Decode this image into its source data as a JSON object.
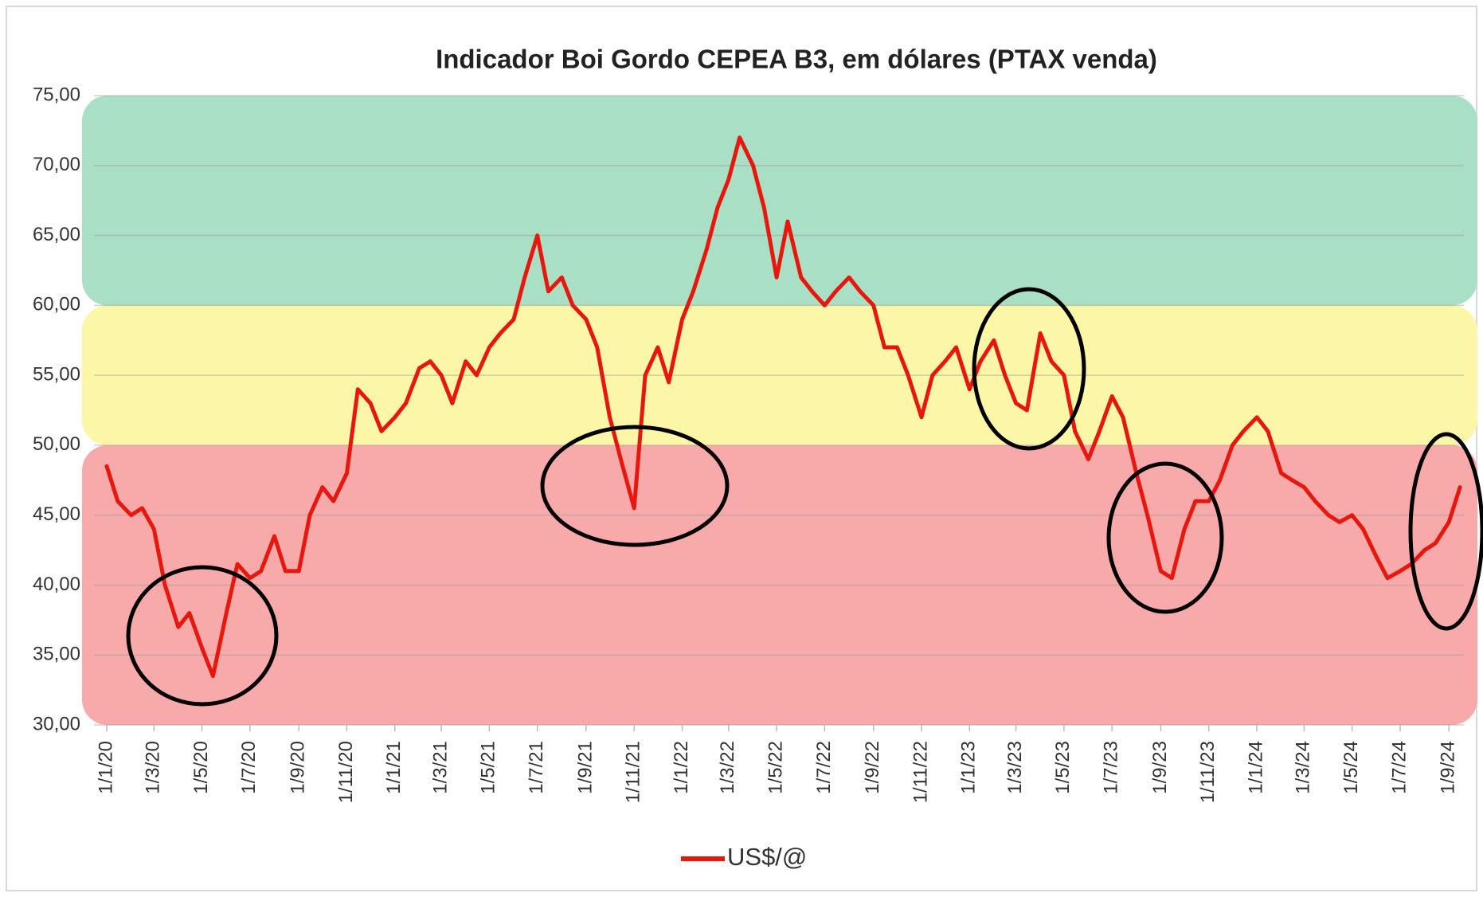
{
  "chart_data": {
    "type": "line",
    "title": "Indicador Boi Gordo CEPEA B3, em dólares (PTAX venda)",
    "x": [
      "2020-01-01",
      "2020-01-15",
      "2020-02-01",
      "2020-02-15",
      "2020-03-01",
      "2020-03-15",
      "2020-04-01",
      "2020-04-15",
      "2020-05-01",
      "2020-05-15",
      "2020-06-01",
      "2020-06-15",
      "2020-07-01",
      "2020-07-15",
      "2020-08-01",
      "2020-08-15",
      "2020-09-01",
      "2020-09-15",
      "2020-10-01",
      "2020-10-15",
      "2020-11-01",
      "2020-11-15",
      "2020-12-01",
      "2020-12-15",
      "2021-01-01",
      "2021-01-15",
      "2021-02-01",
      "2021-02-15",
      "2021-03-01",
      "2021-03-15",
      "2021-04-01",
      "2021-04-15",
      "2021-05-01",
      "2021-05-15",
      "2021-06-01",
      "2021-06-15",
      "2021-07-01",
      "2021-07-15",
      "2021-08-01",
      "2021-08-15",
      "2021-09-01",
      "2021-09-15",
      "2021-10-01",
      "2021-10-15",
      "2021-11-01",
      "2021-11-15",
      "2021-12-01",
      "2021-12-15",
      "2022-01-01",
      "2022-01-15",
      "2022-02-01",
      "2022-02-15",
      "2022-03-01",
      "2022-03-15",
      "2022-04-01",
      "2022-04-15",
      "2022-05-01",
      "2022-05-15",
      "2022-06-01",
      "2022-06-15",
      "2022-07-01",
      "2022-07-15",
      "2022-08-01",
      "2022-08-15",
      "2022-09-01",
      "2022-09-15",
      "2022-10-01",
      "2022-10-15",
      "2022-11-01",
      "2022-11-15",
      "2022-12-01",
      "2022-12-15",
      "2023-01-01",
      "2023-01-15",
      "2023-02-01",
      "2023-02-15",
      "2023-03-01",
      "2023-03-15",
      "2023-04-01",
      "2023-04-15",
      "2023-05-01",
      "2023-05-15",
      "2023-06-01",
      "2023-06-15",
      "2023-07-01",
      "2023-07-15",
      "2023-08-01",
      "2023-08-15",
      "2023-09-01",
      "2023-09-15",
      "2023-10-01",
      "2023-10-15",
      "2023-11-01",
      "2023-11-15",
      "2023-12-01",
      "2023-12-15",
      "2024-01-01",
      "2024-01-15",
      "2024-02-01",
      "2024-02-15",
      "2024-03-01",
      "2024-03-15",
      "2024-04-01",
      "2024-04-15",
      "2024-05-01",
      "2024-05-15",
      "2024-06-01",
      "2024-06-15",
      "2024-07-01",
      "2024-07-15",
      "2024-08-01",
      "2024-08-15",
      "2024-09-01",
      "2024-09-15"
    ],
    "series": [
      {
        "name": "US$/@",
        "color": "#e8170e",
        "values": [
          48.5,
          46,
          45,
          45.5,
          44,
          40,
          37,
          38,
          35.5,
          33.5,
          38,
          41.5,
          40.5,
          41,
          43.5,
          41,
          41,
          45,
          47,
          46,
          48,
          54,
          53,
          51,
          52,
          53,
          55.5,
          56,
          55,
          53,
          56,
          55,
          57,
          58,
          59,
          62,
          65,
          61,
          62,
          60,
          59,
          57,
          52,
          49,
          45.5,
          55,
          57,
          54.5,
          59,
          61,
          64,
          67,
          69,
          72,
          70,
          67,
          62,
          66,
          62,
          61,
          60,
          61,
          62,
          61,
          60,
          57,
          57,
          55,
          52,
          55,
          56,
          57,
          54,
          56,
          57.5,
          55,
          53,
          52.5,
          58,
          56,
          55,
          51,
          49,
          51,
          53.5,
          52,
          48,
          45,
          41,
          40.5,
          44,
          46,
          46,
          47.5,
          50,
          51,
          52,
          51,
          48,
          47.5,
          47,
          46,
          45,
          44.5,
          45,
          44,
          42,
          40.5,
          41,
          41.5,
          42.5,
          43,
          44.5,
          47
        ]
      }
    ],
    "bands": [
      {
        "from": 30,
        "to": 50,
        "color": "#f8a9a9",
        "line_color": "#e8170e"
      },
      {
        "from": 50,
        "to": 60,
        "color": "#fbf7a6",
        "line_color": "#ff6a0a"
      },
      {
        "from": 60,
        "to": 75,
        "color": "#a9dfc5",
        "line_color": "#b8431b"
      }
    ],
    "xlim": [
      "2020-01-01",
      "2024-09-20"
    ],
    "xticks": [
      {
        "value": "2020-01-01",
        "label": "1/1/20"
      },
      {
        "value": "2020-03-01",
        "label": "1/3/20"
      },
      {
        "value": "2020-05-01",
        "label": "1/5/20"
      },
      {
        "value": "2020-07-01",
        "label": "1/7/20"
      },
      {
        "value": "2020-09-01",
        "label": "1/9/20"
      },
      {
        "value": "2020-11-01",
        "label": "1/11/20"
      },
      {
        "value": "2021-01-01",
        "label": "1/1/21"
      },
      {
        "value": "2021-03-01",
        "label": "1/3/21"
      },
      {
        "value": "2021-05-01",
        "label": "1/5/21"
      },
      {
        "value": "2021-07-01",
        "label": "1/7/21"
      },
      {
        "value": "2021-09-01",
        "label": "1/9/21"
      },
      {
        "value": "2021-11-01",
        "label": "1/11/21"
      },
      {
        "value": "2022-01-01",
        "label": "1/1/22"
      },
      {
        "value": "2022-03-01",
        "label": "1/3/22"
      },
      {
        "value": "2022-05-01",
        "label": "1/5/22"
      },
      {
        "value": "2022-07-01",
        "label": "1/7/22"
      },
      {
        "value": "2022-09-01",
        "label": "1/9/22"
      },
      {
        "value": "2022-11-01",
        "label": "1/11/22"
      },
      {
        "value": "2023-01-01",
        "label": "1/1/23"
      },
      {
        "value": "2023-03-01",
        "label": "1/3/23"
      },
      {
        "value": "2023-05-01",
        "label": "1/5/23"
      },
      {
        "value": "2023-07-01",
        "label": "1/7/23"
      },
      {
        "value": "2023-09-01",
        "label": "1/9/23"
      },
      {
        "value": "2023-11-01",
        "label": "1/11/23"
      },
      {
        "value": "2024-01-01",
        "label": "1/1/24"
      },
      {
        "value": "2024-03-01",
        "label": "1/3/24"
      },
      {
        "value": "2024-05-01",
        "label": "1/5/24"
      },
      {
        "value": "2024-07-01",
        "label": "1/7/24"
      },
      {
        "value": "2024-09-01",
        "label": "1/9/24"
      }
    ],
    "ylim": [
      30,
      75
    ],
    "yticks": [
      {
        "value": 30,
        "label": "30,00"
      },
      {
        "value": 35,
        "label": "35,00"
      },
      {
        "value": 40,
        "label": "40,00"
      },
      {
        "value": 45,
        "label": "45,00"
      },
      {
        "value": 50,
        "label": "50,00"
      },
      {
        "value": 55,
        "label": "55,00"
      },
      {
        "value": 60,
        "label": "60,00"
      },
      {
        "value": 65,
        "label": "65,00"
      },
      {
        "value": 70,
        "label": "70,00"
      },
      {
        "value": 75,
        "label": "75,00"
      }
    ],
    "grid": true,
    "legend": "bottom"
  }
}
